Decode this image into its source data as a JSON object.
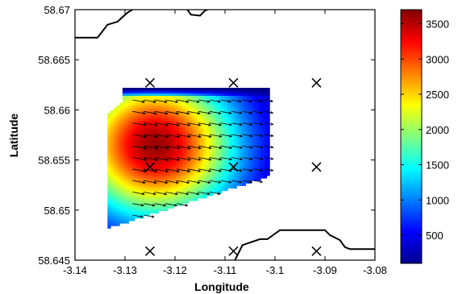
{
  "chart_data": {
    "type": "heatmap",
    "title": "",
    "xlabel": "Longitude",
    "ylabel": "Latitude",
    "xlim": [
      -3.14,
      -3.08
    ],
    "ylim": [
      58.645,
      58.67
    ],
    "xticks": [
      -3.14,
      -3.13,
      -3.12,
      -3.11,
      -3.1,
      -3.09,
      -3.08
    ],
    "xtick_labels": [
      "-3.14",
      "-3.13",
      "-3.12",
      "-3.11",
      "-3.1",
      "-3.09",
      "-3.08"
    ],
    "yticks": [
      58.645,
      58.65,
      58.655,
      58.66,
      58.665,
      58.67
    ],
    "ytick_labels": [
      "58.645",
      "58.65",
      "58.655",
      "58.66",
      "58.665",
      "58.67"
    ],
    "grid": false,
    "colormap": "jet",
    "colorbar": {
      "range": [
        100,
        3700
      ],
      "ticks": [
        500,
        1000,
        1500,
        2000,
        2500,
        3000,
        3500
      ],
      "tick_labels": [
        "500",
        "1000",
        "1500",
        "2000",
        "2500",
        "3000",
        "3500"
      ]
    },
    "value_field": {
      "low": 100,
      "high": 3600,
      "peak_lon": -3.124,
      "peak_lat": 58.6565
    },
    "data_region": [
      [
        -3.1305,
        58.6621
      ],
      [
        -3.101,
        58.6621
      ],
      [
        -3.101,
        58.6534
      ],
      [
        -3.1335,
        58.6482
      ],
      [
        -3.1335,
        58.6595
      ],
      [
        -3.1305,
        58.6608
      ]
    ],
    "stations": [
      [
        -3.125,
        58.6627
      ],
      [
        -3.1083,
        58.6627
      ],
      [
        -3.0917,
        58.6627
      ],
      [
        -3.125,
        58.6543
      ],
      [
        -3.1083,
        58.6543
      ],
      [
        -3.0917,
        58.6543
      ],
      [
        -3.125,
        58.6459
      ],
      [
        -3.1083,
        58.6459
      ],
      [
        -3.0917,
        58.6459
      ]
    ],
    "vector_field": {
      "lon_start": -3.1285,
      "lon_step": 0.0022,
      "lat_start": 58.6495,
      "lat_step": 0.00115,
      "direction": "east-southeast",
      "magnitude": "longer near center of field"
    },
    "coastline_north": [
      [
        -3.14,
        58.6672
      ],
      [
        -3.1355,
        58.6672
      ],
      [
        -3.1335,
        58.6685
      ],
      [
        -3.1315,
        58.6688
      ],
      [
        -3.1295,
        58.6697
      ],
      [
        -3.1285,
        58.67
      ]
    ],
    "coastline_north_east": [
      [
        -3.1175,
        58.67
      ],
      [
        -3.1168,
        58.6695
      ],
      [
        -3.115,
        58.6694
      ],
      [
        -3.114,
        58.6699
      ],
      [
        -3.1135,
        58.67
      ]
    ],
    "coastline_south": [
      [
        -3.108,
        58.645
      ],
      [
        -3.1065,
        58.6465
      ],
      [
        -3.103,
        58.6471
      ],
      [
        -3.1015,
        58.6471
      ],
      [
        -3.099,
        58.648
      ],
      [
        -3.09,
        58.648
      ],
      [
        -3.089,
        58.6475
      ],
      [
        -3.087,
        58.647
      ],
      [
        -3.086,
        58.6463
      ],
      [
        -3.085,
        58.6461
      ],
      [
        -3.08,
        58.6461
      ]
    ]
  }
}
